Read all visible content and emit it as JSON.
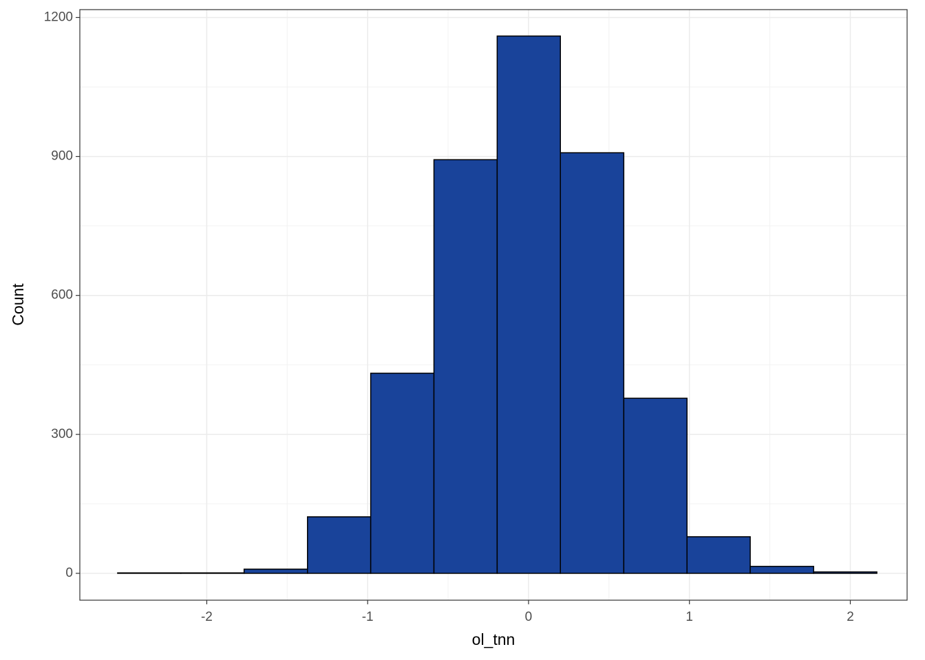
{
  "chart_data": {
    "type": "histogram",
    "x_label": "ol_tnn",
    "y_label": "Count",
    "bins": [
      -2.554,
      -2.161,
      -1.768,
      -1.374,
      -0.981,
      -0.588,
      -0.195,
      0.198,
      0.592,
      0.985,
      1.378,
      1.772,
      2.165
    ],
    "values": [
      1,
      1,
      9,
      122,
      432,
      893,
      1160,
      908,
      378,
      79,
      15,
      3
    ],
    "color": "#19439a",
    "edge_color": "#000000",
    "xlim": [
      -2.789,
      2.353
    ],
    "xticks": [
      -2,
      -1,
      0,
      1,
      2
    ],
    "ylim": [
      -58,
      1217
    ],
    "yticks": [
      0,
      300,
      600,
      900,
      1200
    ],
    "grid": true
  }
}
